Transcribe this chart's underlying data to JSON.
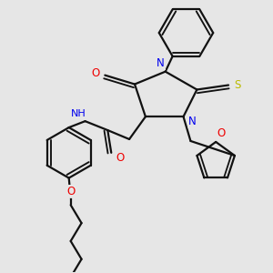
{
  "bg_color": "#e6e6e6",
  "atom_colors": {
    "N": "#0000ee",
    "O": "#ee0000",
    "S": "#bbbb00",
    "C": "#111111",
    "H": "#558888"
  },
  "bond_color": "#111111",
  "bond_width": 1.6,
  "dbo": 0.007
}
